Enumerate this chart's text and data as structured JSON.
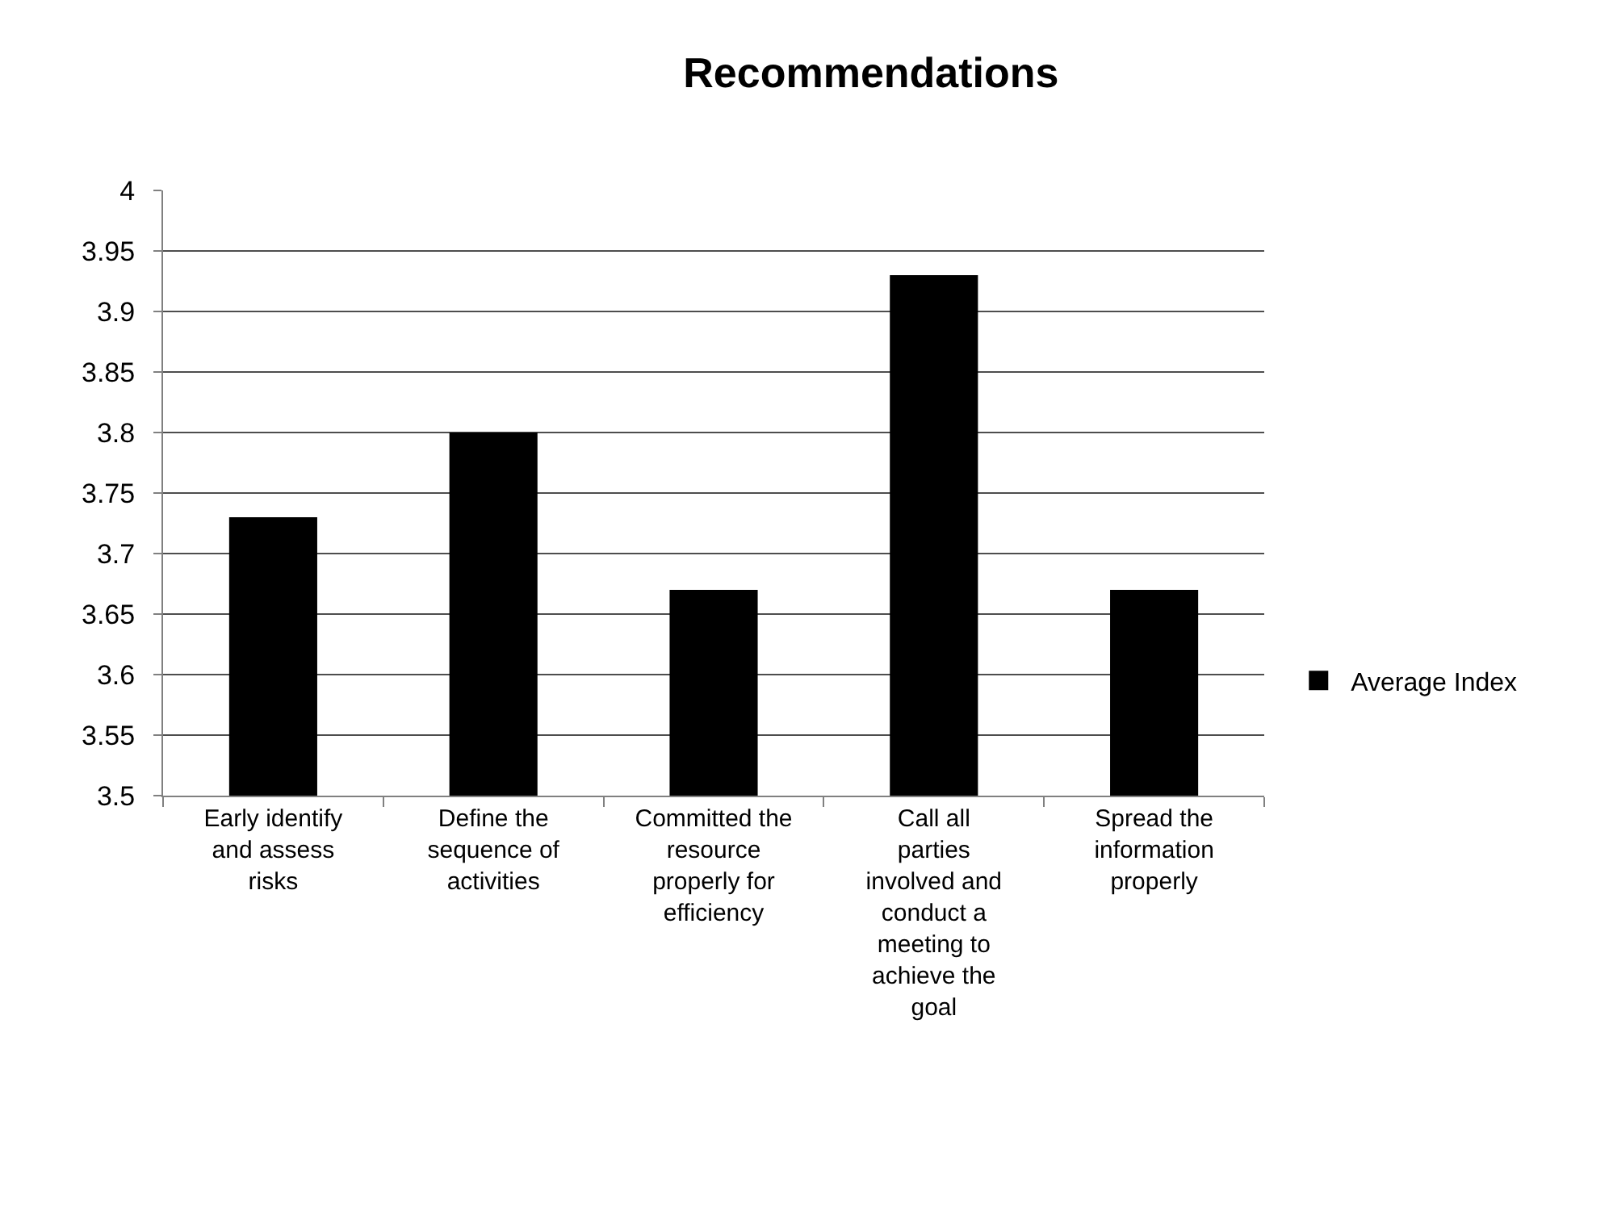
{
  "chart_data": {
    "type": "bar",
    "title": "Recommendations",
    "categories": [
      "Early identify and assess risks",
      "Define the sequence of activities",
      "Committed the resource properly for efficiency",
      "Call all parties involved and conduct a meeting to achieve the goal",
      "Spread the information properly"
    ],
    "series": [
      {
        "name": "Average Index",
        "color": "#000000",
        "values": [
          3.73,
          3.8,
          3.67,
          3.93,
          3.67
        ]
      }
    ],
    "ylim": [
      3.5,
      4
    ],
    "yticks": [
      3.5,
      3.55,
      3.6,
      3.65,
      3.7,
      3.75,
      3.8,
      3.85,
      3.9,
      3.95,
      4
    ],
    "grid": "y",
    "legend": "right"
  }
}
